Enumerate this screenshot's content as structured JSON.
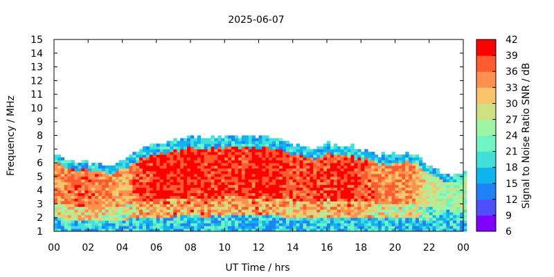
{
  "chart_data": {
    "type": "heatmap",
    "title": "2025-06-07",
    "xlabel": "UT Time / hrs",
    "ylabel": "Frequency / MHz",
    "xlim": [
      0,
      24
    ],
    "ylim": [
      1,
      15
    ],
    "x_ticks": [
      "00",
      "02",
      "04",
      "06",
      "08",
      "10",
      "12",
      "14",
      "16",
      "18",
      "20",
      "22",
      "00"
    ],
    "y_ticks": [
      "1",
      "2",
      "3",
      "4",
      "5",
      "6",
      "7",
      "8",
      "9",
      "10",
      "11",
      "12",
      "13",
      "14",
      "15"
    ],
    "colorbar": {
      "label": "Signal to Noise Ratio SNR / dB",
      "ticks": [
        "6",
        "9",
        "12",
        "15",
        "18",
        "21",
        "24",
        "27",
        "30",
        "33",
        "36",
        "39",
        "42"
      ],
      "range": [
        6,
        42
      ],
      "colors": [
        "#7f00ff",
        "#4f4ffc",
        "#1f82f7",
        "#10b4ec",
        "#40dfdc",
        "#6ff5c4",
        "#9ff5a6",
        "#cfdf82",
        "#f8c46c",
        "#ff9050",
        "#ff5a30",
        "#ff0000"
      ]
    },
    "data_summary": {
      "time_hours": [
        0,
        1,
        2,
        3,
        4,
        5,
        6,
        7,
        8,
        9,
        10,
        11,
        12,
        13,
        14,
        15,
        16,
        17,
        18,
        19,
        20,
        21,
        22,
        23,
        24
      ],
      "upper_frequency_limit_mhz": [
        6.5,
        6.1,
        5.8,
        5.7,
        6.1,
        6.9,
        7.4,
        7.6,
        7.8,
        7.7,
        7.8,
        7.9,
        7.9,
        7.8,
        7.2,
        6.9,
        7.3,
        7.2,
        6.9,
        6.5,
        6.5,
        6.6,
        5.6,
        4.9,
        5.3
      ],
      "peak_snr_db": [
        36,
        38,
        38,
        36,
        34,
        40,
        42,
        42,
        42,
        41,
        41,
        41,
        42,
        42,
        40,
        40,
        40,
        42,
        40,
        37,
        37,
        36,
        30,
        27,
        28
      ]
    }
  }
}
